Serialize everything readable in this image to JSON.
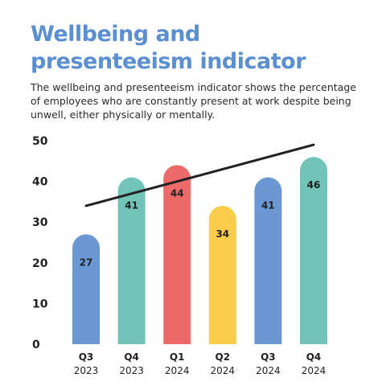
{
  "chart_data": {
    "type": "bar",
    "title": "Wellbeing and presenteeism indicator",
    "subtitle": "The wellbeing and presenteeism indicator shows the percentage of employees who are constantly present at work despite being unwell, either physically or mentally.",
    "categories": [
      {
        "quarter": "Q3",
        "year": "2023"
      },
      {
        "quarter": "Q4",
        "year": "2023"
      },
      {
        "quarter": "Q1",
        "year": "2024"
      },
      {
        "quarter": "Q2",
        "year": "2024"
      },
      {
        "quarter": "Q3",
        "year": "2024"
      },
      {
        "quarter": "Q4",
        "year": "2024"
      }
    ],
    "values": [
      27,
      41,
      44,
      34,
      41,
      46
    ],
    "data_labels": [
      "27",
      "41",
      "44",
      "34",
      "41",
      "46"
    ],
    "bar_colors": [
      "#6b98d3",
      "#72c4b9",
      "#ec6a6a",
      "#fccd4c",
      "#6b98d3",
      "#72c4b9"
    ],
    "yticks": [
      0,
      10,
      20,
      30,
      40,
      50
    ],
    "ylim": [
      0,
      50
    ],
    "trendline": {
      "start": 34,
      "end": 49,
      "color": "#222222"
    },
    "grid": false,
    "legend": "none"
  }
}
